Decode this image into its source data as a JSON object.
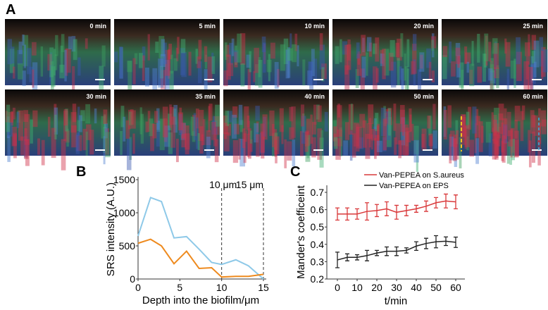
{
  "panel_a": {
    "label": "A",
    "tiles": [
      "0 min",
      "5 min",
      "10 min",
      "20 min",
      "25 min",
      "30 min",
      "35 min",
      "40 min",
      "50 min",
      "60 min"
    ]
  },
  "chart_data": [
    {
      "panel": "B",
      "type": "line",
      "xlabel": "Depth into the biofilm/μm",
      "ylabel": "SRS intensity (A.U.)",
      "xlim": [
        0,
        15
      ],
      "ylim": [
        0,
        1500
      ],
      "xticks": [
        "0",
        "5",
        "10",
        "15"
      ],
      "yticks": [
        "0",
        "500",
        "1000",
        "1500"
      ],
      "annotations": [
        "10 μm",
        "15 μm"
      ],
      "vlines": [
        10,
        15
      ],
      "series": [
        {
          "color": "#8ec9e8",
          "x": [
            0,
            1.5,
            2.8,
            4.3,
            5.8,
            7.3,
            8.8,
            10,
            11.7,
            13.2,
            15
          ],
          "y": [
            650,
            1230,
            1170,
            620,
            640,
            450,
            250,
            220,
            290,
            200,
            0
          ]
        },
        {
          "color": "#ee8a1e",
          "x": [
            0,
            1.5,
            2.8,
            4.3,
            5.8,
            7.3,
            8.8,
            10,
            11.7,
            13.2,
            15
          ],
          "y": [
            540,
            600,
            500,
            230,
            420,
            160,
            170,
            30,
            40,
            40,
            70
          ]
        }
      ]
    },
    {
      "panel": "C",
      "type": "line",
      "xlabel": "t/min",
      "ylabel": "Mander's coefficeint",
      "xlim": [
        -5,
        65
      ],
      "ylim": [
        0.2,
        0.75
      ],
      "xticks": [
        "0",
        "10",
        "20",
        "30",
        "40",
        "50",
        "60"
      ],
      "yticks": [
        "0.2",
        "0.3",
        "0.4",
        "0.5",
        "0.6",
        "0.7"
      ],
      "legend": "top",
      "x": [
        0,
        5,
        10,
        15,
        20,
        25,
        30,
        35,
        40,
        45,
        50,
        55,
        60
      ],
      "series": [
        {
          "name": "Van-PEPEA on S.aureus",
          "color": "#d9383a",
          "y": [
            0.575,
            0.575,
            0.575,
            0.59,
            0.595,
            0.605,
            0.585,
            0.595,
            0.605,
            0.62,
            0.64,
            0.65,
            0.645
          ],
          "err": [
            0.035,
            0.035,
            0.03,
            0.05,
            0.035,
            0.04,
            0.04,
            0.03,
            0.02,
            0.03,
            0.03,
            0.04,
            0.04
          ]
        },
        {
          "name": "Van-PEPEA on EPS",
          "color": "#222222",
          "y": [
            0.31,
            0.325,
            0.325,
            0.335,
            0.35,
            0.36,
            0.36,
            0.365,
            0.39,
            0.405,
            0.415,
            0.418,
            0.412
          ],
          "err": [
            0.045,
            0.02,
            0.015,
            0.03,
            0.015,
            0.025,
            0.025,
            0.015,
            0.025,
            0.03,
            0.035,
            0.025,
            0.03
          ]
        }
      ]
    }
  ]
}
